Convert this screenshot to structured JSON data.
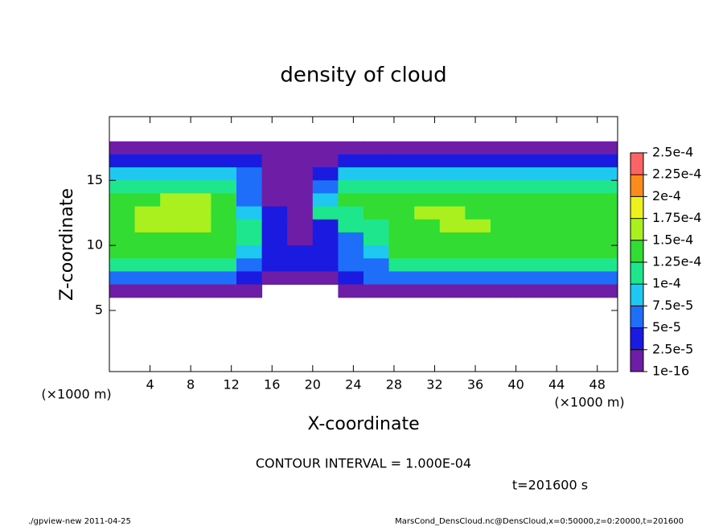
{
  "chart_data": {
    "type": "heatmap",
    "title": "density of cloud",
    "xlabel": "X-coordinate",
    "ylabel": "Z-coordinate",
    "x_unit": "(×1000 m)",
    "contour_note": "CONTOUR INTERVAL = 1.000E-04",
    "time_note": "t=201600 s",
    "footer_left": "./gpview-new  2011-04-25",
    "footer_right": "MarsCond_DensCloud.nc@DensCloud,x=0:50000,z=0:20000,t=201600",
    "xlim": [
      0,
      50
    ],
    "ylim": [
      0.3,
      19.9
    ],
    "xticks": [
      4,
      8,
      12,
      16,
      20,
      24,
      28,
      32,
      36,
      40,
      44,
      48
    ],
    "yticks": [
      5,
      10,
      15
    ],
    "x": [
      1.25,
      3.75,
      6.25,
      8.75,
      11.25,
      13.75,
      16.25,
      18.75,
      21.25,
      23.75,
      26.25,
      28.75,
      31.25,
      33.75,
      36.25,
      38.75,
      41.25,
      43.75,
      46.25,
      48.75
    ],
    "z": [
      17.5,
      16.5,
      15.5,
      14.5,
      13.5,
      12.5,
      11.5,
      10.5,
      9.5,
      8.5,
      7.5,
      6.5
    ],
    "values": [
      [
        5e-06,
        5e-06,
        5e-06,
        5e-06,
        5e-06,
        5e-06,
        5e-06,
        5e-06,
        5e-06,
        5e-06,
        5e-06,
        5e-06,
        5e-06,
        5e-06,
        5e-06,
        5e-06,
        5e-06,
        5e-06,
        5e-06,
        5e-06
      ],
      [
        3e-05,
        3e-05,
        3e-05,
        3e-05,
        3e-05,
        2.5e-05,
        1e-05,
        1e-05,
        2e-05,
        3.5e-05,
        3.5e-05,
        3.5e-05,
        3.5e-05,
        3.5e-05,
        3.5e-05,
        3.5e-05,
        3.5e-05,
        3.5e-05,
        3.5e-05,
        3.5e-05
      ],
      [
        8e-05,
        8e-05,
        8e-05,
        8e-05,
        8e-05,
        6e-05,
        2e-05,
        1e-05,
        4e-05,
        8e-05,
        8e-05,
        8e-05,
        8e-05,
        8e-05,
        8e-05,
        8e-05,
        8e-05,
        8e-05,
        8e-05,
        8e-05
      ],
      [
        0.00012,
        0.00012,
        0.00012,
        0.00012,
        0.00011,
        6e-05,
        2e-05,
        1e-05,
        7e-05,
        0.00012,
        0.00012,
        0.00012,
        0.00012,
        0.00012,
        0.00012,
        0.00012,
        0.00012,
        0.00012,
        0.00012,
        0.00012
      ],
      [
        0.00014,
        0.00014,
        0.00015,
        0.00015,
        0.00013,
        7e-05,
        2e-05,
        1e-05,
        9e-05,
        0.000135,
        0.000135,
        0.000135,
        0.00014,
        0.000145,
        0.00014,
        0.000135,
        0.000135,
        0.00014,
        0.00014,
        0.000135
      ],
      [
        0.000145,
        0.00015,
        0.00016,
        0.00016,
        0.00014,
        9e-05,
        3e-05,
        1e-05,
        0.00011,
        0.00012,
        0.00014,
        0.000145,
        0.00015,
        0.00015,
        0.000145,
        0.00014,
        0.00014,
        0.000145,
        0.000145,
        0.00014
      ],
      [
        0.000145,
        0.00015,
        0.00015,
        0.00015,
        0.000145,
        0.00011,
        3e-05,
        1e-05,
        3e-05,
        0.0001,
        0.00012,
        0.00014,
        0.000145,
        0.00015,
        0.00015,
        0.000145,
        0.00014,
        0.00014,
        0.000145,
        0.00014
      ],
      [
        0.00014,
        0.00014,
        0.00014,
        0.00014,
        0.000135,
        0.00011,
        3e-05,
        2e-05,
        3e-05,
        6e-05,
        0.0001,
        0.000135,
        0.000135,
        0.000135,
        0.000135,
        0.000135,
        0.000135,
        0.000135,
        0.000135,
        0.000135
      ],
      [
        0.00013,
        0.00013,
        0.00013,
        0.00013,
        0.00013,
        9e-05,
        4e-05,
        3e-05,
        4e-05,
        5e-05,
        8e-05,
        0.000125,
        0.000125,
        0.000125,
        0.000125,
        0.000125,
        0.000125,
        0.000125,
        0.000125,
        0.000125
      ],
      [
        0.0001,
        0.0001,
        0.0001,
        0.0001,
        0.0001,
        7e-05,
        3e-05,
        4e-05,
        3e-05,
        5e-05,
        6e-05,
        0.0001,
        0.0001,
        0.0001,
        0.0001,
        0.0001,
        0.0001,
        0.0001,
        0.0001,
        0.0001
      ],
      [
        6e-05,
        6e-05,
        6e-05,
        6e-05,
        6e-05,
        4e-05,
        2e-05,
        1e-05,
        2e-05,
        4e-05,
        5e-05,
        6e-05,
        6e-05,
        6e-05,
        6e-05,
        6e-05,
        6e-05,
        6e-05,
        6e-05,
        6e-05
      ],
      [
        1.5e-05,
        1.5e-05,
        1.5e-05,
        1.5e-05,
        1.5e-05,
        1e-05,
        null,
        null,
        null,
        1e-05,
        2e-05,
        1.5e-05,
        1.5e-05,
        1.5e-05,
        1.5e-05,
        1.5e-05,
        1.5e-05,
        1.5e-05,
        1.5e-05,
        1.5e-05
      ]
    ],
    "colorbar": {
      "levels": [
        {
          "value": 1e-16,
          "label": "1e-16"
        },
        {
          "value": 2.5e-05,
          "label": "2.5e-5"
        },
        {
          "value": 5e-05,
          "label": "5e-5"
        },
        {
          "value": 7.5e-05,
          "label": "7.5e-5"
        },
        {
          "value": 0.0001,
          "label": "1e-4"
        },
        {
          "value": 0.000125,
          "label": "1.25e-4"
        },
        {
          "value": 0.00015,
          "label": "1.5e-4"
        },
        {
          "value": 0.000175,
          "label": "1.75e-4"
        },
        {
          "value": 0.0002,
          "label": "2e-4"
        },
        {
          "value": 0.000225,
          "label": "2.25e-4"
        },
        {
          "value": 0.00025,
          "label": "2.5e-4"
        }
      ],
      "colors": [
        "#6e1ea6",
        "#1a1ae0",
        "#1e6efa",
        "#1ec8f0",
        "#1ee68c",
        "#32dc32",
        "#aaf01e",
        "#f0f01e",
        "#fa8c1e",
        "#fa6464"
      ]
    }
  }
}
